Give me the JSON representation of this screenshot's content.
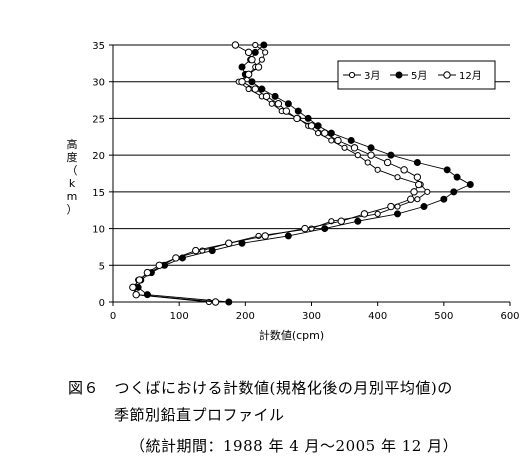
{
  "chart_data": {
    "type": "line",
    "xlabel": "計数値(cpm)",
    "ylabel": "高度（km）",
    "xlim": [
      0,
      600
    ],
    "ylim": [
      0,
      35
    ],
    "xticks": [
      "0",
      "100",
      "200",
      "300",
      "400",
      "500",
      "600"
    ],
    "yticks": [
      "0",
      "5",
      "10",
      "15",
      "20",
      "25",
      "30",
      "35"
    ],
    "grid": "horizontal",
    "legend_position": "top-right",
    "series": [
      {
        "name": "3月",
        "marker": "open-circle-small",
        "points": [
          [
            145,
            0
          ],
          [
            36,
            1
          ],
          [
            32,
            2
          ],
          [
            38,
            3
          ],
          [
            55,
            4
          ],
          [
            75,
            5
          ],
          [
            95,
            6
          ],
          [
            135,
            7
          ],
          [
            175,
            8
          ],
          [
            220,
            9
          ],
          [
            300,
            10
          ],
          [
            330,
            11
          ],
          [
            400,
            12
          ],
          [
            430,
            13
          ],
          [
            460,
            14
          ],
          [
            475,
            15
          ],
          [
            465,
            16
          ],
          [
            430,
            17
          ],
          [
            400,
            18
          ],
          [
            385,
            19
          ],
          [
            370,
            20
          ],
          [
            350,
            21
          ],
          [
            330,
            22
          ],
          [
            310,
            23
          ],
          [
            295,
            24
          ],
          [
            280,
            25
          ],
          [
            255,
            26
          ],
          [
            240,
            27
          ],
          [
            225,
            28
          ],
          [
            205,
            29
          ],
          [
            190,
            30
          ],
          [
            205,
            31
          ],
          [
            215,
            32
          ],
          [
            225,
            33
          ],
          [
            230,
            34
          ],
          [
            215,
            35
          ]
        ]
      },
      {
        "name": "5月",
        "marker": "filled-circle",
        "points": [
          [
            175,
            0
          ],
          [
            52,
            1
          ],
          [
            38,
            2
          ],
          [
            42,
            3
          ],
          [
            58,
            4
          ],
          [
            78,
            5
          ],
          [
            105,
            6
          ],
          [
            150,
            7
          ],
          [
            195,
            8
          ],
          [
            265,
            9
          ],
          [
            320,
            10
          ],
          [
            370,
            11
          ],
          [
            430,
            12
          ],
          [
            470,
            13
          ],
          [
            500,
            14
          ],
          [
            515,
            15
          ],
          [
            540,
            16
          ],
          [
            520,
            17
          ],
          [
            505,
            18
          ],
          [
            460,
            19
          ],
          [
            420,
            20
          ],
          [
            390,
            21
          ],
          [
            360,
            22
          ],
          [
            330,
            23
          ],
          [
            310,
            24
          ],
          [
            295,
            25
          ],
          [
            280,
            26
          ],
          [
            265,
            27
          ],
          [
            245,
            28
          ],
          [
            225,
            29
          ],
          [
            210,
            30
          ],
          [
            200,
            31
          ],
          [
            195,
            32
          ],
          [
            208,
            33
          ],
          [
            215,
            34
          ],
          [
            228,
            35
          ]
        ]
      },
      {
        "name": "12月",
        "marker": "open-circle",
        "points": [
          [
            155,
            0
          ],
          [
            35,
            1
          ],
          [
            30,
            2
          ],
          [
            40,
            3
          ],
          [
            52,
            4
          ],
          [
            70,
            5
          ],
          [
            95,
            6
          ],
          [
            125,
            7
          ],
          [
            175,
            8
          ],
          [
            230,
            9
          ],
          [
            290,
            10
          ],
          [
            345,
            11
          ],
          [
            380,
            12
          ],
          [
            420,
            13
          ],
          [
            450,
            14
          ],
          [
            455,
            15
          ],
          [
            462,
            16
          ],
          [
            460,
            17
          ],
          [
            440,
            18
          ],
          [
            415,
            19
          ],
          [
            390,
            20
          ],
          [
            365,
            21
          ],
          [
            340,
            22
          ],
          [
            320,
            23
          ],
          [
            300,
            24
          ],
          [
            278,
            25
          ],
          [
            262,
            26
          ],
          [
            250,
            27
          ],
          [
            232,
            28
          ],
          [
            215,
            29
          ],
          [
            195,
            30
          ],
          [
            205,
            31
          ],
          [
            220,
            32
          ],
          [
            210,
            33
          ],
          [
            205,
            34
          ],
          [
            185,
            35
          ]
        ]
      }
    ]
  },
  "caption": {
    "line1": "図６　つくばにおける計数値(規格化後の月別平均値)の",
    "line2": "季節別鉛直プロファイル",
    "line3": "（統計期間：1988 年 4 月～2005 年 12 月）"
  }
}
